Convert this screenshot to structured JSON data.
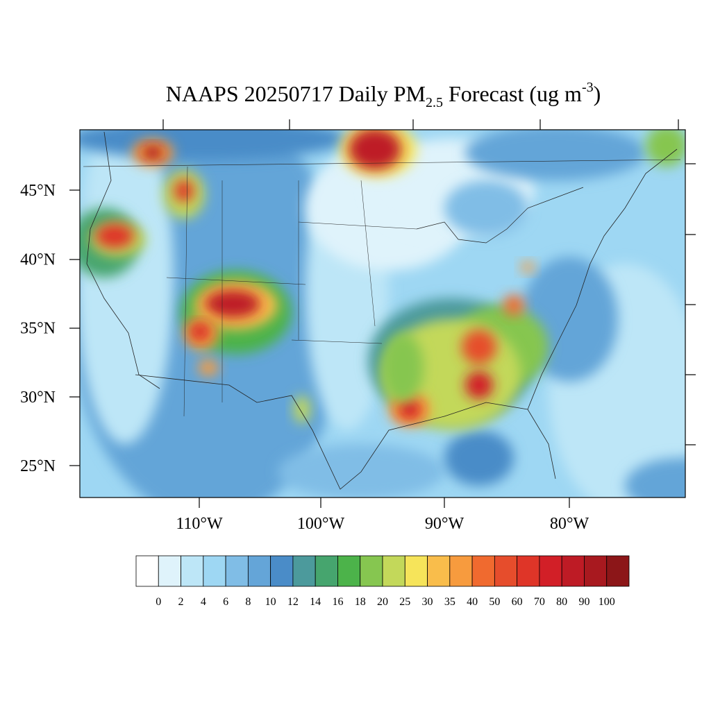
{
  "map_data": {
    "title": {
      "main": "NAAPS 20250717 Daily PM",
      "subscript": "2.5",
      "middle": " Forecast (ug m",
      "superscript": "-3",
      "end": ")"
    },
    "lat_labels": [
      "45°N",
      "40°N",
      "35°N",
      "30°N",
      "25°N"
    ],
    "lon_labels": [
      "110°W",
      "100°W",
      "90°W",
      "80°W"
    ],
    "colorbar": {
      "levels": [
        0,
        2,
        4,
        6,
        8,
        10,
        12,
        14,
        16,
        18,
        20,
        25,
        30,
        35,
        40,
        50,
        60,
        70,
        80,
        90,
        100
      ],
      "colors": [
        "#ffffff",
        "#dff3fb",
        "#bde6f7",
        "#9ed7f3",
        "#80bde6",
        "#64a5d8",
        "#4a8cc8",
        "#4c9a9c",
        "#46a56e",
        "#4cb34a",
        "#86c650",
        "#c3d85a",
        "#f6e45a",
        "#f9bd4b",
        "#f79b3e",
        "#f06a2f",
        "#e64d2c",
        "#df3528",
        "#d21f27",
        "#be1b25",
        "#a8191f",
        "#8c1618"
      ]
    }
  }
}
